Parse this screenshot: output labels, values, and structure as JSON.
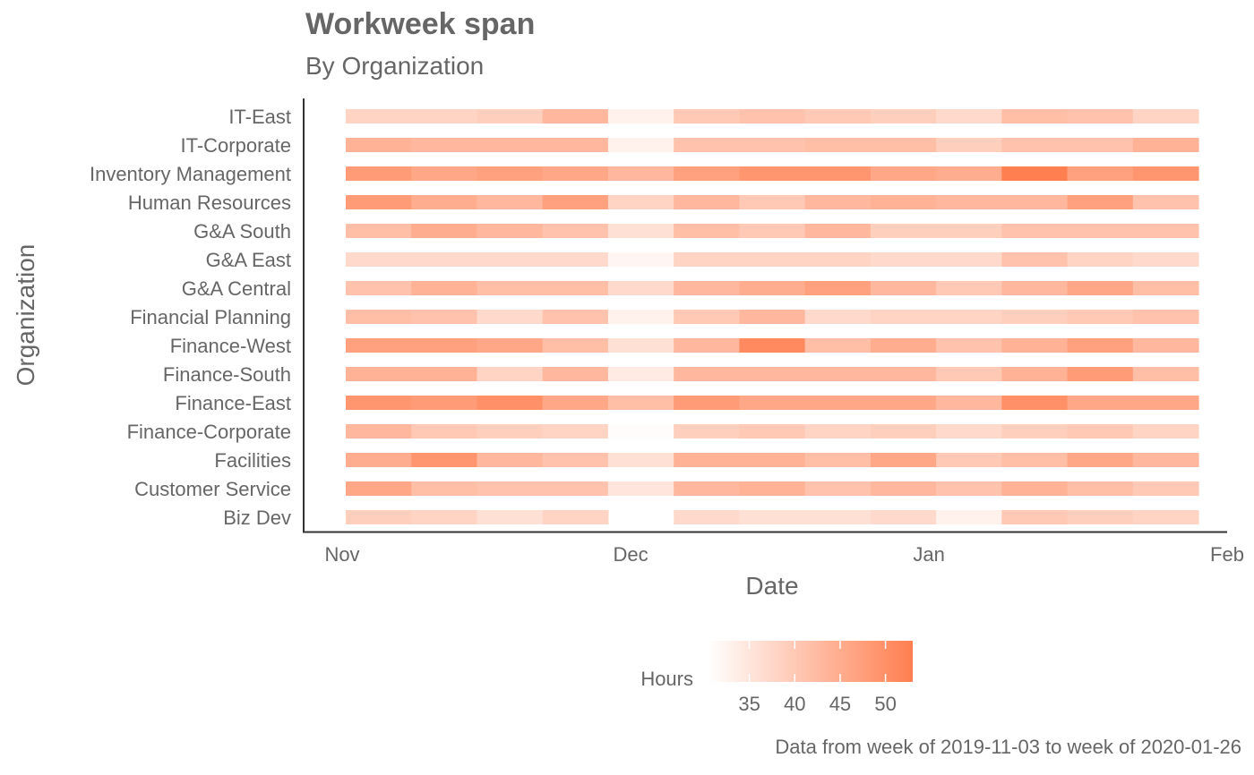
{
  "chart_data": {
    "type": "heatmap",
    "title": "Workweek span",
    "subtitle": "By Organization",
    "xlabel": "Date",
    "ylabel": "Organization",
    "caption": "Data from week of 2019-11-03 to week of 2020-01-26",
    "x_ticks": [
      {
        "label": "Nov",
        "date": "2019-11-01"
      },
      {
        "label": "Dec",
        "date": "2019-12-01"
      },
      {
        "label": "Jan",
        "date": "2020-01-01"
      },
      {
        "label": "Feb",
        "date": "2020-02-01"
      }
    ],
    "x_range": [
      "2019-10-28",
      "2020-02-01"
    ],
    "weeks": [
      "2019-11-03",
      "2019-11-10",
      "2019-11-17",
      "2019-11-24",
      "2019-12-01",
      "2019-12-08",
      "2019-12-15",
      "2019-12-22",
      "2019-12-29",
      "2020-01-05",
      "2020-01-12",
      "2020-01-19",
      "2020-01-26"
    ],
    "organizations": [
      "IT-East",
      "IT-Corporate",
      "Inventory Management",
      "Human Resources",
      "G&A South",
      "G&A East",
      "G&A Central",
      "Financial Planning",
      "Finance-West",
      "Finance-South",
      "Finance-East",
      "Finance-Corporate",
      "Facilities",
      "Customer Service",
      "Biz Dev"
    ],
    "values": [
      [
        38,
        38,
        39,
        43,
        33,
        40,
        41,
        40,
        39,
        37,
        42,
        41,
        38
      ],
      [
        44,
        43,
        43,
        43,
        33,
        41,
        41,
        42,
        42,
        39,
        41,
        41,
        44
      ],
      [
        48,
        46,
        47,
        46,
        43,
        47,
        49,
        49,
        46,
        45,
        53,
        47,
        49
      ],
      [
        48,
        45,
        43,
        47,
        38,
        43,
        40,
        43,
        44,
        43,
        43,
        47,
        41
      ],
      [
        42,
        45,
        43,
        41,
        36,
        42,
        40,
        43,
        39,
        39,
        41,
        41,
        41
      ],
      [
        37,
        37,
        37,
        37,
        32,
        38,
        38,
        38,
        37,
        37,
        41,
        38,
        37
      ],
      [
        41,
        44,
        42,
        42,
        37,
        43,
        45,
        47,
        43,
        40,
        43,
        46,
        42
      ],
      [
        42,
        41,
        37,
        41,
        33,
        40,
        43,
        37,
        38,
        38,
        39,
        40,
        41
      ],
      [
        47,
        47,
        46,
        42,
        36,
        43,
        51,
        42,
        45,
        41,
        44,
        47,
        43
      ],
      [
        44,
        44,
        38,
        43,
        34,
        43,
        43,
        43,
        43,
        40,
        44,
        48,
        42
      ],
      [
        49,
        48,
        50,
        46,
        42,
        48,
        46,
        46,
        46,
        43,
        50,
        46,
        46
      ],
      [
        43,
        40,
        39,
        38,
        31,
        39,
        40,
        38,
        39,
        37,
        39,
        40,
        38
      ],
      [
        45,
        49,
        43,
        41,
        36,
        44,
        44,
        42,
        46,
        40,
        42,
        46,
        43
      ],
      [
        46,
        42,
        41,
        41,
        35,
        43,
        44,
        41,
        43,
        41,
        44,
        42,
        40
      ],
      [
        39,
        38,
        36,
        38,
        null,
        37,
        36,
        36,
        37,
        33,
        40,
        39,
        38
      ]
    ],
    "legend": {
      "title": "Hours",
      "ticks": [
        35,
        40,
        45,
        50
      ],
      "range": [
        30.5,
        53
      ],
      "low_color": "#ffffff",
      "high_color": "#ff7f50"
    },
    "grid": false,
    "legend_position": "bottom"
  }
}
